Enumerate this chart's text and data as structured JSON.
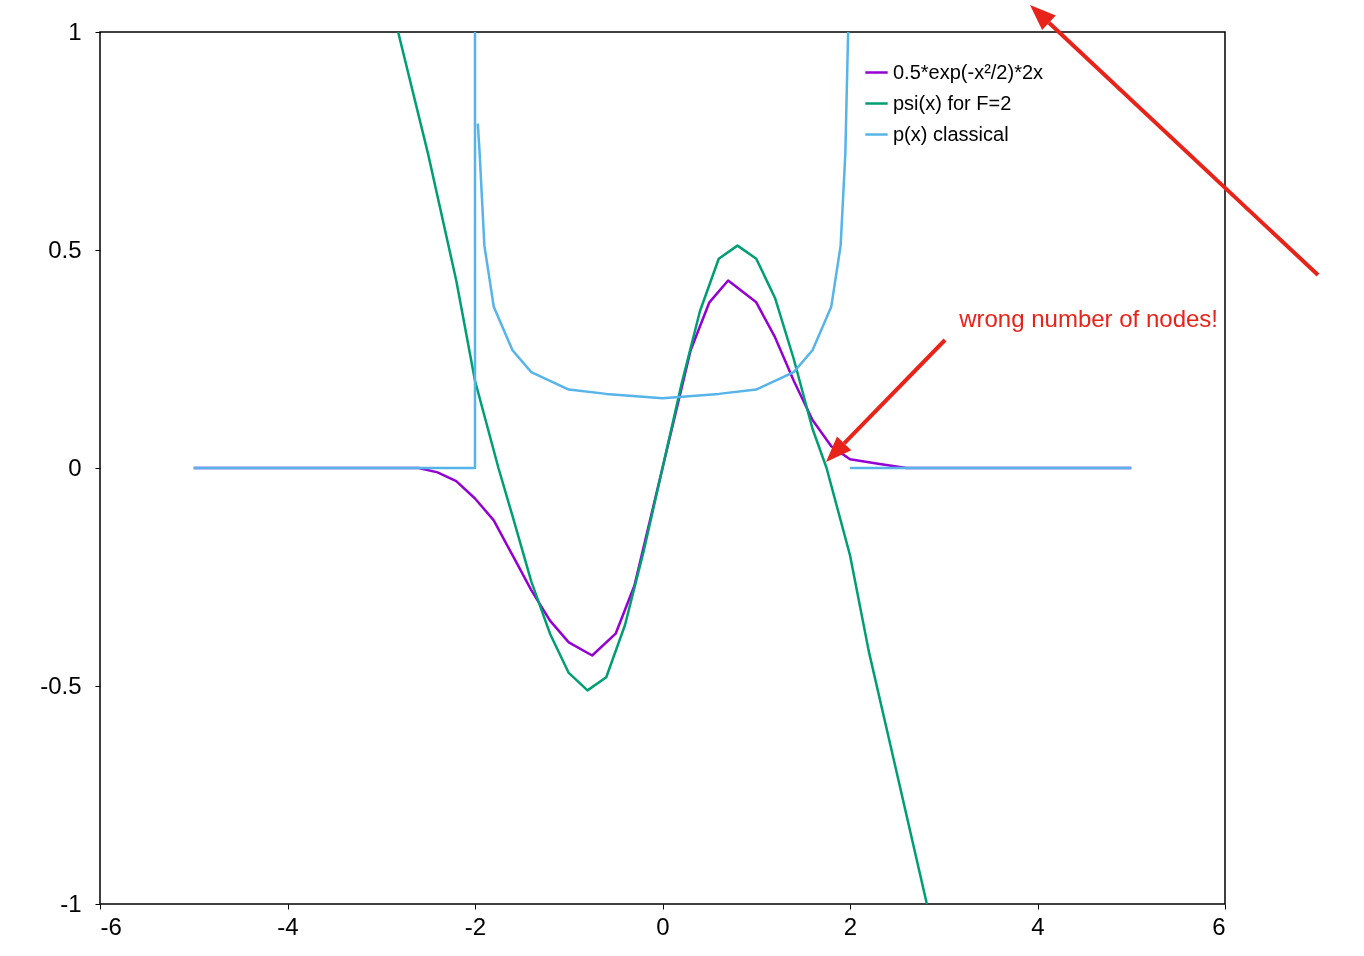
{
  "chart_data": {
    "type": "line",
    "xlim": [
      -6,
      6
    ],
    "ylim": [
      -1,
      1
    ],
    "xticks": [
      -6,
      -4,
      -2,
      0,
      2,
      4,
      6
    ],
    "yticks": [
      -1,
      -0.5,
      0,
      0.5,
      1
    ],
    "grid": false,
    "legend": "top right",
    "marker": "none",
    "line_style": "solid",
    "series": [
      {
        "name": "0.5*exp(-x²/2)*2x",
        "color": "#9400d3",
        "x": [
          -5,
          -2.6,
          -2.4,
          -2.2,
          -2,
          -1.8,
          -1.6,
          -1.4,
          -1.2,
          -1,
          -0.75,
          -0.5,
          -0.3,
          0,
          0.3,
          0.5,
          0.7,
          1,
          1.2,
          1.4,
          1.6,
          1.8,
          2,
          2.3,
          2.6,
          5
        ],
        "values": [
          0,
          0,
          -0.01,
          -0.03,
          -0.07,
          -0.12,
          -0.2,
          -0.28,
          -0.35,
          -0.4,
          -0.43,
          -0.38,
          -0.27,
          0,
          0.27,
          0.38,
          0.43,
          0.38,
          0.3,
          0.2,
          0.11,
          0.05,
          0.02,
          0.01,
          0,
          0
        ]
      },
      {
        "name": "psi(x) for F=2",
        "color": "#009e73",
        "x": [
          -2.82,
          -2.5,
          -2.2,
          -2,
          -1.75,
          -1.6,
          -1.4,
          -1.2,
          -1,
          -0.8,
          -0.6,
          -0.4,
          -0.2,
          0,
          0.2,
          0.4,
          0.6,
          0.8,
          1,
          1.2,
          1.4,
          1.6,
          1.75,
          2,
          2.2,
          2.5,
          2.82
        ],
        "values": [
          1,
          0.72,
          0.43,
          0.2,
          0,
          -0.11,
          -0.26,
          -0.38,
          -0.47,
          -0.51,
          -0.48,
          -0.36,
          -0.19,
          0,
          0.19,
          0.36,
          0.48,
          0.51,
          0.48,
          0.39,
          0.25,
          0.09,
          0,
          -0.2,
          -0.42,
          -0.7,
          -1
        ]
      },
      {
        "name": "p(x) classical",
        "color": "#56b4e9",
        "x": [
          -5,
          -2,
          -2,
          -1.99,
          -1.97,
          -1.95,
          -1.9,
          -1.8,
          -1.6,
          -1.4,
          -1.2,
          -1,
          -0.6,
          0,
          0.6,
          1,
          1.2,
          1.4,
          1.6,
          1.8,
          1.9,
          1.95,
          1.98,
          1.99,
          2,
          5
        ],
        "values": [
          0,
          0,
          1,
          null,
          0.79,
          0.72,
          0.51,
          0.37,
          0.27,
          0.22,
          0.2,
          0.18,
          0.17,
          0.16,
          0.17,
          0.18,
          0.2,
          0.22,
          0.27,
          0.37,
          0.51,
          0.72,
          1,
          null,
          0,
          0
        ]
      }
    ],
    "annotations": [
      "wrong number of nodes!"
    ]
  }
}
